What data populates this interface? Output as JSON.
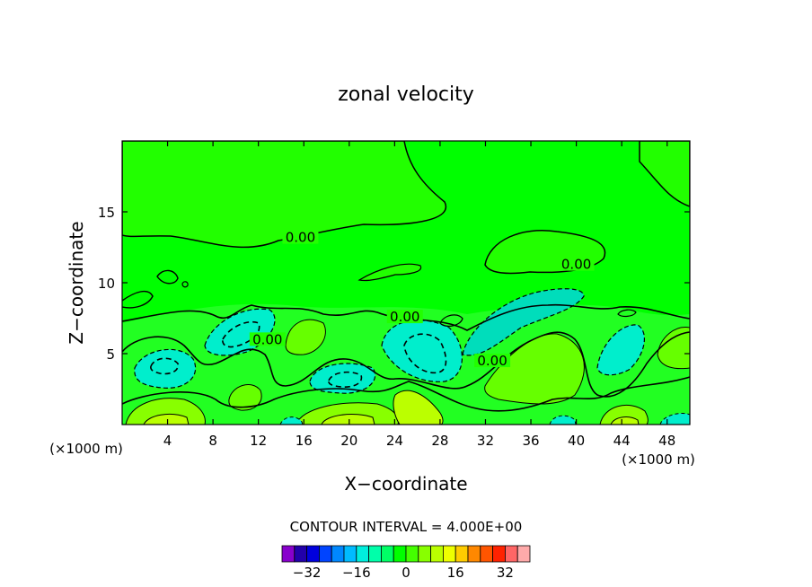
{
  "chart_data": {
    "type": "contour",
    "title": "zonal velocity",
    "xlabel": "X−coordinate",
    "ylabel": "Z−coordinate",
    "x_unit_left": "(×1000 m)",
    "x_unit_right": "(×1000 m)",
    "xlim": [
      0,
      50
    ],
    "ylim": [
      0,
      20
    ],
    "x_ticks": [
      4,
      8,
      12,
      16,
      20,
      24,
      28,
      32,
      36,
      40,
      44,
      48
    ],
    "y_ticks": [
      5,
      10,
      15
    ],
    "contour_interval_text": "CONTOUR INTERVAL = 4.000E+00",
    "contour_labels": [
      {
        "text": "0.00",
        "x": 15.7,
        "y": 13.0
      },
      {
        "text": "0.00",
        "x": 40.0,
        "y": 11.1
      },
      {
        "text": "0.00",
        "x": 24.9,
        "y": 7.4
      },
      {
        "text": "0.00",
        "x": 12.8,
        "y": 5.8
      },
      {
        "text": "0.00",
        "x": 32.6,
        "y": 4.3
      }
    ],
    "colorbar": {
      "colors": [
        "#8800cc",
        "#2200aa",
        "#0000dd",
        "#0044ff",
        "#0088ff",
        "#00bbff",
        "#00eedd",
        "#00ffaa",
        "#00ff66",
        "#00ff00",
        "#44ff00",
        "#88ff00",
        "#bbff00",
        "#eeff00",
        "#ffcc00",
        "#ff8800",
        "#ff5500",
        "#ff2200",
        "#ff6666",
        "#ffaaaa"
      ],
      "min": -40,
      "step": 4,
      "tick_labels": [
        {
          "text": "−32",
          "value": -32
        },
        {
          "text": "−16",
          "value": -16
        },
        {
          "text": "0",
          "value": 0
        },
        {
          "text": "16",
          "value": 16
        },
        {
          "text": "32",
          "value": 32
        }
      ]
    }
  }
}
